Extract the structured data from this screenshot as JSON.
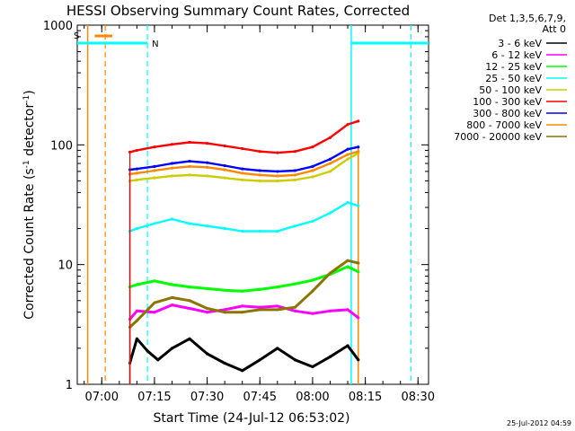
{
  "chart_data": {
    "type": "line",
    "title": "HESSI Observing Summary Count Rates, Corrected",
    "xlabel": "Start Time (24-Jul-12 06:53:02)",
    "ylabel": "Corrected Count Rate (s⁻¹ detector⁻¹)",
    "ylabel_base": "Corrected Count Rate (s",
    "ylabel_mid": " detector",
    "ylabel_end": ")",
    "ylabel_sup": "-1",
    "y_scale": "log",
    "ylim": [
      1,
      1000
    ],
    "xlim": [
      "06:53:02",
      "08:33:00"
    ],
    "x_ticks": [
      "07:00",
      "07:15",
      "07:30",
      "07:45",
      "08:00",
      "08:15",
      "08:30"
    ],
    "y_ticks": [
      "1",
      "10",
      "100",
      "1000"
    ],
    "legend": {
      "placement": "right",
      "header": [
        "Det 1,3,5,6,7,9,",
        "Att 0"
      ]
    },
    "series": [
      {
        "name": "3 - 6 keV",
        "color": "#000000",
        "x": [
          "07:08",
          "07:10",
          "07:13",
          "07:16",
          "07:20",
          "07:25",
          "07:30",
          "07:35",
          "07:40",
          "07:45",
          "07:50",
          "07:55",
          "08:00",
          "08:05",
          "08:10",
          "08:13"
        ],
        "y": [
          1.5,
          2.4,
          1.9,
          1.6,
          2.0,
          2.4,
          1.8,
          1.5,
          1.3,
          1.6,
          2.0,
          1.6,
          1.4,
          1.7,
          2.1,
          1.6
        ]
      },
      {
        "name": "6 - 12 keV",
        "color": "#ff00ff",
        "x": [
          "07:08",
          "07:10",
          "07:15",
          "07:20",
          "07:25",
          "07:30",
          "07:35",
          "07:40",
          "07:45",
          "07:50",
          "07:55",
          "08:00",
          "08:05",
          "08:10",
          "08:13"
        ],
        "y": [
          3.5,
          4.1,
          4.0,
          4.6,
          4.3,
          4.0,
          4.2,
          4.5,
          4.4,
          4.5,
          4.1,
          3.9,
          4.1,
          4.2,
          3.6
        ]
      },
      {
        "name": "12 - 25 keV",
        "color": "#00ff00",
        "x": [
          "07:08",
          "07:10",
          "07:15",
          "07:20",
          "07:25",
          "07:30",
          "07:35",
          "07:40",
          "07:45",
          "07:50",
          "07:55",
          "08:00",
          "08:05",
          "08:10",
          "08:13"
        ],
        "y": [
          6.5,
          6.8,
          7.3,
          6.8,
          6.5,
          6.3,
          6.1,
          6.0,
          6.2,
          6.5,
          6.9,
          7.4,
          8.3,
          9.6,
          8.7
        ]
      },
      {
        "name": "25 - 50 keV",
        "color": "#00ffff",
        "x": [
          "07:08",
          "07:10",
          "07:15",
          "07:20",
          "07:25",
          "07:30",
          "07:35",
          "07:40",
          "07:45",
          "07:50",
          "07:55",
          "08:00",
          "08:05",
          "08:10",
          "08:13"
        ],
        "y": [
          19,
          20,
          22,
          24,
          22,
          21,
          20,
          19,
          19,
          19,
          21,
          23,
          27,
          33,
          31
        ]
      },
      {
        "name": "50 - 100 keV",
        "color": "#cccc00",
        "x": [
          "07:08",
          "07:10",
          "07:15",
          "07:20",
          "07:25",
          "07:30",
          "07:35",
          "07:40",
          "07:45",
          "07:50",
          "07:55",
          "08:00",
          "08:05",
          "08:10",
          "08:13"
        ],
        "y": [
          50,
          51,
          53,
          55,
          56,
          55,
          53,
          51,
          50,
          50,
          51,
          54,
          60,
          76,
          85
        ]
      },
      {
        "name": "100 - 300 keV",
        "color": "#ff0000",
        "x": [
          "07:08",
          "07:10",
          "07:15",
          "07:20",
          "07:25",
          "07:30",
          "07:35",
          "07:40",
          "07:45",
          "07:50",
          "07:55",
          "08:00",
          "08:05",
          "08:10",
          "08:13"
        ],
        "y": [
          87,
          90,
          96,
          101,
          105,
          103,
          98,
          93,
          88,
          86,
          88,
          96,
          115,
          148,
          158
        ]
      },
      {
        "name": "300 - 800 keV",
        "color": "#0000ff",
        "x": [
          "07:08",
          "07:10",
          "07:15",
          "07:20",
          "07:25",
          "07:30",
          "07:35",
          "07:40",
          "07:45",
          "07:50",
          "07:55",
          "08:00",
          "08:05",
          "08:10",
          "08:13"
        ],
        "y": [
          62,
          63,
          66,
          70,
          73,
          71,
          67,
          63,
          61,
          60,
          61,
          66,
          76,
          92,
          96
        ]
      },
      {
        "name": "800 - 7000 keV",
        "color": "#ff8800",
        "x": [
          "07:08",
          "07:10",
          "07:15",
          "07:20",
          "07:25",
          "07:30",
          "07:35",
          "07:40",
          "07:45",
          "07:50",
          "07:55",
          "08:00",
          "08:05",
          "08:10",
          "08:13"
        ],
        "y": [
          57,
          58,
          61,
          64,
          66,
          65,
          62,
          58,
          56,
          55,
          56,
          61,
          70,
          83,
          88
        ]
      },
      {
        "name": "7000 - 20000 keV",
        "color": "#8b7500",
        "x": [
          "07:08",
          "07:10",
          "07:15",
          "07:20",
          "07:25",
          "07:30",
          "07:35",
          "07:40",
          "07:45",
          "07:50",
          "07:55",
          "08:00",
          "08:05",
          "08:10",
          "08:13"
        ],
        "y": [
          3.0,
          3.4,
          4.8,
          5.3,
          5.0,
          4.3,
          4.0,
          4.0,
          4.2,
          4.2,
          4.4,
          6.0,
          8.5,
          10.8,
          10.3
        ]
      }
    ],
    "annotations": [
      {
        "label": "S",
        "color": "#ff8800"
      },
      {
        "label": "N",
        "color": "#00ffff"
      }
    ],
    "footer": "25-Jul-2012 04:59"
  }
}
